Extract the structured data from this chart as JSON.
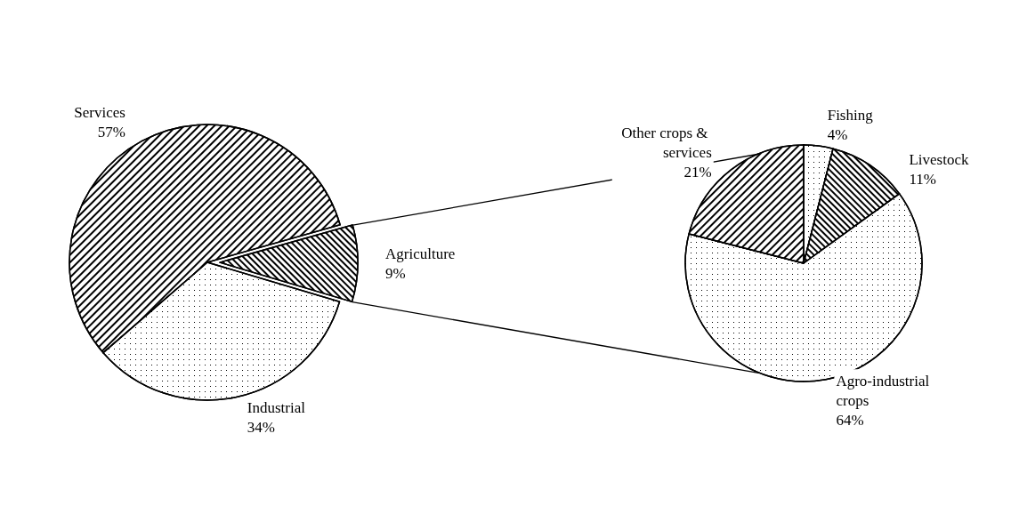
{
  "chart_data": [
    {
      "type": "pie",
      "categories": [
        "Services",
        "Agriculture",
        "Industrial"
      ],
      "values": [
        57,
        9,
        34
      ],
      "value_labels": [
        "57%",
        "9%",
        "34%"
      ],
      "colors": [
        "#ffffff",
        "#ffffff",
        "#ffffff"
      ]
    },
    {
      "type": "pie",
      "categories": [
        "Fishing",
        "Livestock",
        "Agro-industrial crops",
        "Other crops & services"
      ],
      "values": [
        4,
        11,
        64,
        21
      ],
      "value_labels": [
        "4%",
        "11%",
        "64%",
        "21%"
      ],
      "colors": [
        "#ffffff",
        "#ffffff",
        "#ffffff",
        "#ffffff"
      ]
    }
  ]
}
